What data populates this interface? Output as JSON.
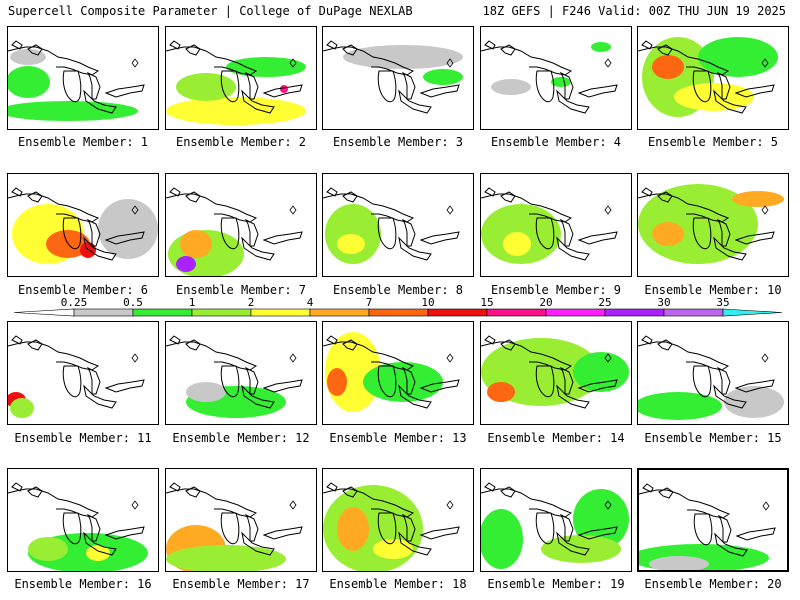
{
  "header": {
    "title_left": "Supercell Composite Parameter | College of DuPage NEXLAB",
    "title_right": "18Z GEFS | F246 Valid: 00Z THU JUN 19 2025"
  },
  "legend": {
    "ticks": [
      "0.25",
      "0.5",
      "1",
      "2",
      "4",
      "7",
      "10",
      "15",
      "20",
      "25",
      "30",
      "35"
    ],
    "colors": [
      "#c8c8c8",
      "#33ee33",
      "#99ee33",
      "#ffff33",
      "#ffaa22",
      "#ff6611",
      "#ee1111",
      "#ff1188",
      "#ff22ff",
      "#aa22ff",
      "#bb66ee",
      "#33eeee"
    ]
  },
  "panels": [
    {
      "label": "Ensemble Member: 1"
    },
    {
      "label": "Ensemble Member: 2"
    },
    {
      "label": "Ensemble Member: 3"
    },
    {
      "label": "Ensemble Member: 4"
    },
    {
      "label": "Ensemble Member: 5"
    },
    {
      "label": "Ensemble Member: 6"
    },
    {
      "label": "Ensemble Member: 7"
    },
    {
      "label": "Ensemble Member: 8"
    },
    {
      "label": "Ensemble Member: 9"
    },
    {
      "label": "Ensemble Member: 10"
    },
    {
      "label": "Ensemble Member: 11"
    },
    {
      "label": "Ensemble Member: 12"
    },
    {
      "label": "Ensemble Member: 13"
    },
    {
      "label": "Ensemble Member: 14"
    },
    {
      "label": "Ensemble Member: 15"
    },
    {
      "label": "Ensemble Member: 16"
    },
    {
      "label": "Ensemble Member: 17"
    },
    {
      "label": "Ensemble Member: 18"
    },
    {
      "label": "Ensemble Member: 19"
    },
    {
      "label": "Ensemble Member: 20"
    }
  ]
}
